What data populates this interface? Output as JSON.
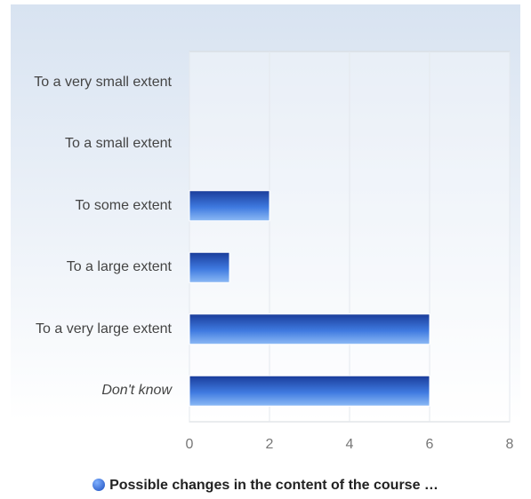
{
  "chart_data": {
    "type": "bar",
    "orientation": "horizontal",
    "categories": [
      "To a very small extent",
      "To a small extent",
      "To some extent",
      "To a large extent",
      "To a very large extent",
      "Don't know"
    ],
    "series": [
      {
        "name": "Possible changes in the content of the course …",
        "color": "#2a5fcf",
        "values": [
          0,
          0,
          2,
          1,
          6,
          6
        ]
      }
    ],
    "xlim": [
      0,
      8
    ],
    "xticks": [
      0,
      2,
      4,
      6,
      8
    ],
    "grid": true,
    "legend": "bottom"
  }
}
